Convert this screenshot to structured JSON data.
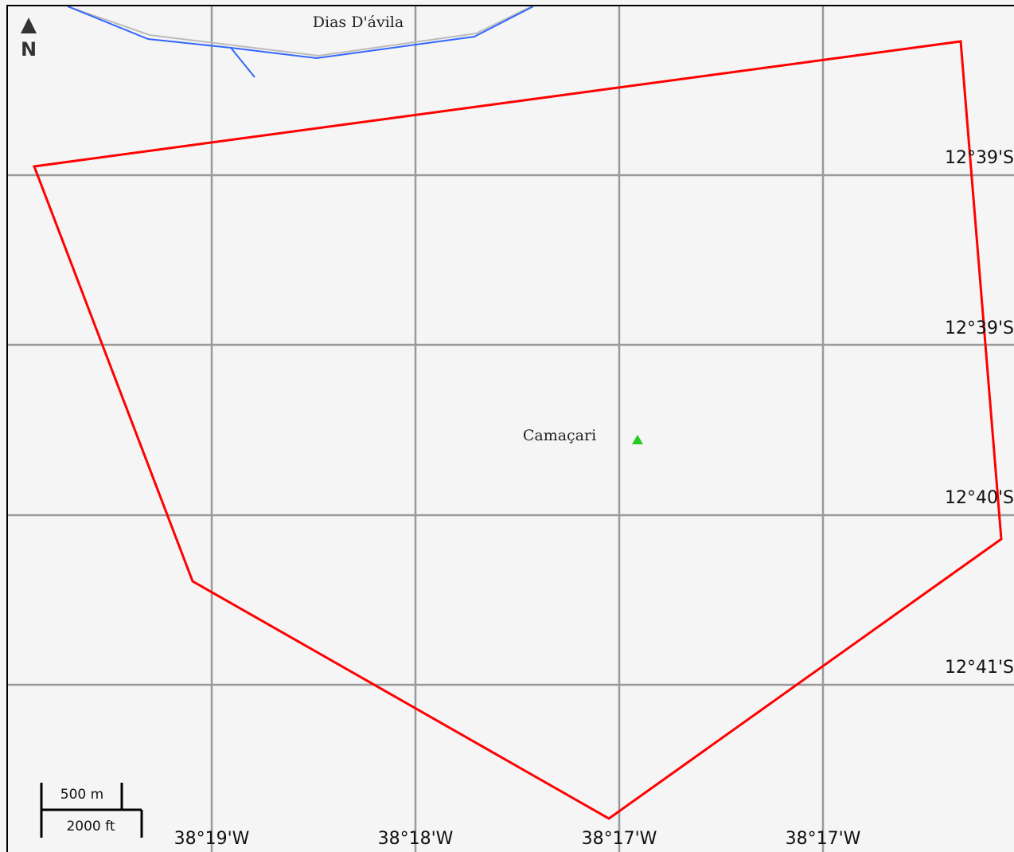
{
  "map": {
    "colors": {
      "background": "#f5f5f5",
      "frame": "#000000",
      "grid": "#9a9a9a",
      "boundary": "#ff0000",
      "river": "#3366ff",
      "road": "#bbbbbb",
      "city_marker": "#22cc22"
    },
    "places": {
      "dias_davila": "Dias D'ávila",
      "camacari": "Camaçari"
    },
    "latitude_labels": [
      "12°39'S",
      "12°39'S",
      "12°40'S",
      "12°41'S"
    ],
    "longitude_labels": [
      "38°19'W",
      "38°18'W",
      "38°17'W",
      "38°17'W"
    ],
    "scale_bar": {
      "metric": "500 m",
      "imperial": "2000 ft"
    },
    "north_arrow": {
      "label": "N"
    }
  }
}
